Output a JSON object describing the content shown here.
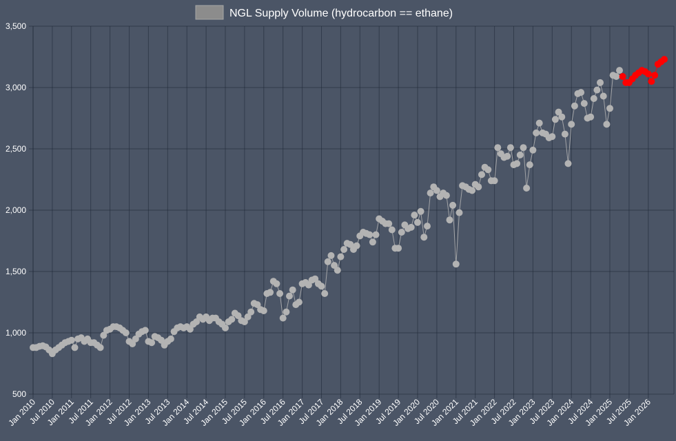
{
  "chart_data": {
    "type": "line",
    "title": "",
    "xlabel": "",
    "ylabel": "",
    "ylim": [
      500,
      3500
    ],
    "yticks": [
      {
        "value": 500,
        "label": "500"
      },
      {
        "value": 1000,
        "label": "1,000"
      },
      {
        "value": 1500,
        "label": "1,500"
      },
      {
        "value": 2000,
        "label": "2,000"
      },
      {
        "value": 2500,
        "label": "2,500"
      },
      {
        "value": 3000,
        "label": "3,000"
      },
      {
        "value": 3500,
        "label": "3,500"
      }
    ],
    "xrange": [
      "2010-01",
      "2026-09"
    ],
    "xticks": [
      "Jan 2010",
      "Jul 2010",
      "Jan 2011",
      "Jul 2011",
      "Jan 2012",
      "Jul 2012",
      "Jan 2013",
      "Jul 2013",
      "Jan 2014",
      "Jul 2014",
      "Jan 2015",
      "Jul 2015",
      "Jan 2016",
      "Jul 2016",
      "Jan 2017",
      "Jul 2017",
      "Jan 2018",
      "Jul 2018",
      "Jan 2019",
      "Jul 2019",
      "Jan 2020",
      "Jul 2020",
      "Jan 2021",
      "Jul 2021",
      "Jan 2022",
      "Jul 2022",
      "Jan 2023",
      "Jul 2023",
      "Jan 2024",
      "Jul 2024",
      "Jan 2025",
      "Jul 2025",
      "Jan 2026"
    ],
    "grid": true,
    "legend_position": "top",
    "series": [
      {
        "name": "NGL Supply Volume (hydrocarbon == ethane)",
        "color": "#b3b3b3",
        "legend_color": "#8c8c8c",
        "x_start": "2010-01",
        "values": [
          880,
          880,
          890,
          895,
          885,
          860,
          830,
          860,
          880,
          900,
          920,
          930,
          940,
          880,
          950,
          960,
          930,
          950,
          920,
          920,
          900,
          880,
          980,
          1020,
          1030,
          1050,
          1050,
          1040,
          1020,
          1000,
          930,
          910,
          950,
          990,
          1010,
          1020,
          930,
          920,
          970,
          960,
          940,
          900,
          930,
          950,
          1010,
          1040,
          1050,
          1040,
          1050,
          1030,
          1070,
          1090,
          1130,
          1110,
          1130,
          1100,
          1120,
          1120,
          1090,
          1070,
          1040,
          1090,
          1110,
          1160,
          1140,
          1100,
          1090,
          1130,
          1170,
          1240,
          1230,
          1190,
          1180,
          1320,
          1330,
          1420,
          1400,
          1320,
          1120,
          1170,
          1300,
          1350,
          1230,
          1250,
          1400,
          1410,
          1390,
          1430,
          1440,
          1400,
          1380,
          1320,
          1580,
          1630,
          1550,
          1510,
          1620,
          1680,
          1730,
          1720,
          1680,
          1710,
          1790,
          1820,
          1810,
          1800,
          1740,
          1800,
          1930,
          1910,
          1890,
          1890,
          1840,
          1690,
          1690,
          1820,
          1880,
          1850,
          1860,
          1960,
          1900,
          1990,
          1780,
          1870,
          2140,
          2190,
          2160,
          2110,
          2140,
          2120,
          1920,
          2040,
          1560,
          1980,
          2200,
          2190,
          2170,
          2160,
          2210,
          2190,
          2290,
          2350,
          2330,
          2240,
          2240,
          2510,
          2460,
          2430,
          2440,
          2510,
          2370,
          2380,
          2450,
          2510,
          2180,
          2370,
          2490,
          2630,
          2710,
          2630,
          2620,
          2590,
          2600,
          2740,
          2800,
          2760,
          2620,
          2380,
          2700,
          2850,
          2950,
          2960,
          2870,
          2750,
          2760,
          2910,
          2980,
          3040,
          2930,
          2700,
          2830,
          3100,
          3090,
          3140
        ]
      },
      {
        "name": "",
        "color": "#ff0000",
        "x_start": "2025-05",
        "values": [
          3090,
          3040,
          3040,
          3070,
          3100,
          3120,
          3140,
          3130,
          3110,
          3050,
          3100,
          3190,
          3210,
          3230
        ]
      }
    ]
  }
}
